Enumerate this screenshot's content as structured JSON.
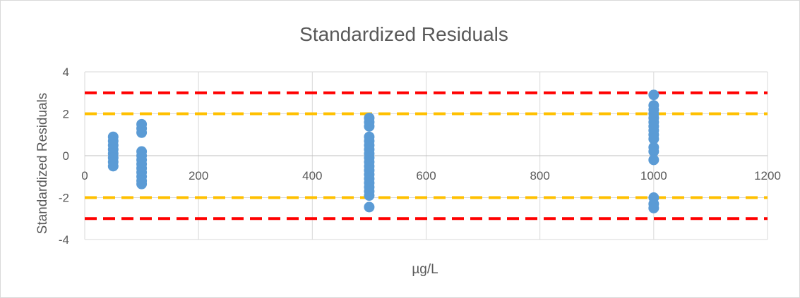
{
  "chart_data": {
    "type": "scatter",
    "title": "Standardized Residuals",
    "xlabel": "µg/L",
    "ylabel": "Standardized Residuals",
    "xlim": [
      0,
      1200
    ],
    "ylim": [
      -4,
      4
    ],
    "x_ticks": [
      "0",
      "200",
      "400",
      "600",
      "800",
      "1000",
      "1200"
    ],
    "y_ticks": [
      "4",
      "2",
      "0",
      "-2",
      "-4"
    ],
    "grid": true,
    "series": [
      {
        "color": "#5b9bd5",
        "points": [
          [
            50,
            0.9
          ],
          [
            50,
            0.7
          ],
          [
            50,
            0.5
          ],
          [
            50,
            0.3
          ],
          [
            50,
            0.1
          ],
          [
            50,
            -0.1
          ],
          [
            50,
            -0.3
          ],
          [
            50,
            -0.5
          ],
          [
            100,
            1.5
          ],
          [
            100,
            1.3
          ],
          [
            100,
            1.1
          ],
          [
            100,
            0.2
          ],
          [
            100,
            0.0
          ],
          [
            100,
            -0.2
          ],
          [
            100,
            -0.4
          ],
          [
            100,
            -0.6
          ],
          [
            100,
            -0.8
          ],
          [
            100,
            -1.0
          ],
          [
            100,
            -1.2
          ],
          [
            100,
            -1.35
          ],
          [
            500,
            1.8
          ],
          [
            500,
            1.6
          ],
          [
            500,
            1.4
          ],
          [
            500,
            0.9
          ],
          [
            500,
            0.7
          ],
          [
            500,
            0.5
          ],
          [
            500,
            0.3
          ],
          [
            500,
            0.1
          ],
          [
            500,
            -0.1
          ],
          [
            500,
            -0.3
          ],
          [
            500,
            -0.5
          ],
          [
            500,
            -0.7
          ],
          [
            500,
            -0.9
          ],
          [
            500,
            -1.1
          ],
          [
            500,
            -1.3
          ],
          [
            500,
            -1.5
          ],
          [
            500,
            -1.7
          ],
          [
            500,
            -1.9
          ],
          [
            500,
            -2.45
          ],
          [
            1000,
            2.9
          ],
          [
            1000,
            2.4
          ],
          [
            1000,
            2.2
          ],
          [
            1000,
            2.0
          ],
          [
            1000,
            1.8
          ],
          [
            1000,
            1.6
          ],
          [
            1000,
            1.4
          ],
          [
            1000,
            1.2
          ],
          [
            1000,
            1.0
          ],
          [
            1000,
            0.8
          ],
          [
            1000,
            0.4
          ],
          [
            1000,
            0.2
          ],
          [
            1000,
            -0.2
          ],
          [
            1000,
            -2.0
          ],
          [
            1000,
            -2.3
          ],
          [
            1000,
            -2.5
          ]
        ]
      }
    ],
    "reference_lines": [
      {
        "y": 3,
        "color": "#ff0000",
        "style": "dashed"
      },
      {
        "y": 2,
        "color": "#ffc000",
        "style": "dashed"
      },
      {
        "y": -2,
        "color": "#ffc000",
        "style": "dashed"
      },
      {
        "y": -3,
        "color": "#ff0000",
        "style": "dashed"
      }
    ]
  }
}
